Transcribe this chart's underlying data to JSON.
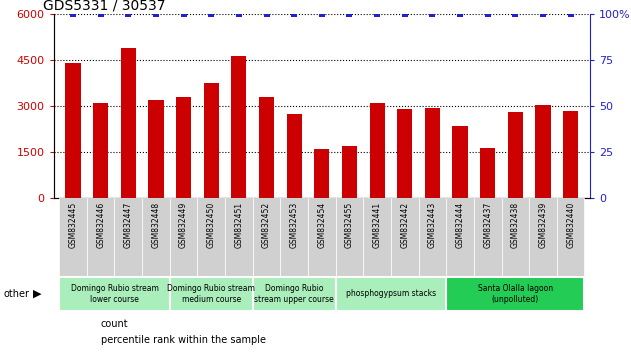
{
  "title": "GDS5331 / 30537",
  "samples": [
    "GSM832445",
    "GSM832446",
    "GSM832447",
    "GSM832448",
    "GSM832449",
    "GSM832450",
    "GSM832451",
    "GSM832452",
    "GSM832453",
    "GSM832454",
    "GSM832455",
    "GSM832441",
    "GSM832442",
    "GSM832443",
    "GSM832444",
    "GSM832437",
    "GSM832438",
    "GSM832439",
    "GSM832440"
  ],
  "counts": [
    4400,
    3100,
    4900,
    3200,
    3300,
    3750,
    4650,
    3300,
    2750,
    1600,
    1700,
    3100,
    2900,
    2950,
    2350,
    1650,
    2800,
    3050,
    2850
  ],
  "percentiles": [
    100,
    100,
    100,
    100,
    100,
    100,
    100,
    100,
    100,
    100,
    100,
    100,
    100,
    100,
    100,
    100,
    100,
    100,
    100
  ],
  "bar_color": "#cc0000",
  "dot_color": "#2222cc",
  "ylim_left": [
    0,
    6000
  ],
  "ylim_right": [
    0,
    100
  ],
  "yticks_left": [
    0,
    1500,
    3000,
    4500,
    6000
  ],
  "yticks_right": [
    0,
    25,
    50,
    75,
    100
  ],
  "groups": [
    {
      "label": "Domingo Rubio stream\nlower course",
      "start": 0,
      "end": 3,
      "color": "#aaeebb"
    },
    {
      "label": "Domingo Rubio stream\nmedium course",
      "start": 4,
      "end": 6,
      "color": "#aaeebb"
    },
    {
      "label": "Domingo Rubio\nstream upper course",
      "start": 7,
      "end": 9,
      "color": "#aaeebb"
    },
    {
      "label": "phosphogypsum stacks",
      "start": 10,
      "end": 13,
      "color": "#aaeebb"
    },
    {
      "label": "Santa Olalla lagoon\n(unpolluted)",
      "start": 14,
      "end": 18,
      "color": "#22cc55"
    }
  ],
  "other_label": "other",
  "legend_count_label": "count",
  "legend_pct_label": "percentile rank within the sample",
  "bg_color": "#ffffff",
  "plot_bg": "#ffffff",
  "tick_area_bg": "#d8d8d8",
  "grid_color": "#000000"
}
